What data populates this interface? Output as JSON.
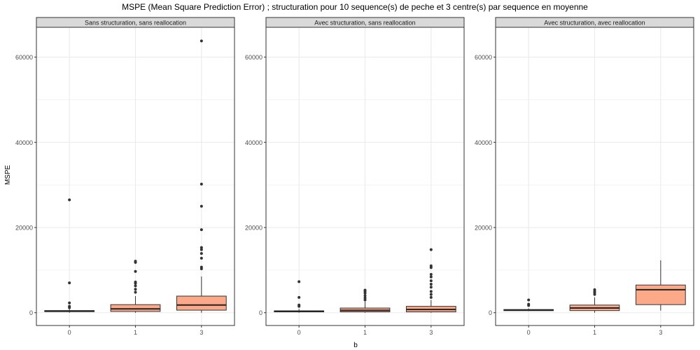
{
  "chart_data": {
    "type": "boxplot",
    "title": "MSPE (Mean Square Prediction Error) ; structuration pour 10 sequence(s) de peche et 3 centre(s) par sequence en moyenne",
    "xlabel": "b",
    "ylabel": "MSPE",
    "categories": [
      "0",
      "1",
      "3"
    ],
    "ylim": [
      -3000,
      67000
    ],
    "yticks": [
      0,
      20000,
      40000,
      60000
    ],
    "ytick_labels": [
      "0",
      "20000",
      "40000",
      "60000"
    ],
    "grid": true,
    "colors": {
      "fill": "#FCA98A",
      "facet_strip": "#D9D9D9",
      "panel_border": "#333333",
      "grid": "#EBEBEB"
    },
    "panels": [
      {
        "strip_label": "Sans structuration, sans reallocation",
        "boxes": [
          {
            "category": "0",
            "lower_whisker": 0,
            "q1": 250,
            "median": 380,
            "q3": 500,
            "upper_whisker": 900,
            "outliers": [
              1200,
              1500,
              2300,
              7000,
              26500
            ]
          },
          {
            "category": "1",
            "lower_whisker": 0,
            "q1": 300,
            "median": 900,
            "q3": 1900,
            "upper_whisker": 3900,
            "outliers": [
              4800,
              5500,
              6300,
              6900,
              7200,
              9700,
              11800,
              12100
            ]
          },
          {
            "category": "3",
            "lower_whisker": 0,
            "q1": 600,
            "median": 1800,
            "q3": 3900,
            "upper_whisker": 8500,
            "outliers": [
              10300,
              10700,
              12800,
              13900,
              14800,
              15300,
              19500,
              25000,
              30200,
              63800
            ]
          }
        ]
      },
      {
        "strip_label": "Avec structuration, sans reallocation",
        "boxes": [
          {
            "category": "0",
            "lower_whisker": 0,
            "q1": 200,
            "median": 330,
            "q3": 450,
            "upper_whisker": 900,
            "outliers": [
              1500,
              1800,
              3600,
              7300
            ]
          },
          {
            "category": "1",
            "lower_whisker": 0,
            "q1": 200,
            "median": 550,
            "q3": 1100,
            "upper_whisker": 2600,
            "outliers": [
              3000,
              3500,
              4000,
              4600,
              5000,
              5300
            ]
          },
          {
            "category": "3",
            "lower_whisker": 0,
            "q1": 200,
            "median": 750,
            "q3": 1500,
            "upper_whisker": 3000,
            "outliers": [
              3600,
              4300,
              5000,
              6000,
              6700,
              7500,
              8400,
              9000,
              10600,
              11000,
              14800
            ]
          }
        ]
      },
      {
        "strip_label": "Avec structuration, avec reallocation",
        "boxes": [
          {
            "category": "0",
            "lower_whisker": 400,
            "q1": 500,
            "median": 600,
            "q3": 750,
            "upper_whisker": 1000,
            "outliers": [
              1700,
              2000,
              3000
            ]
          },
          {
            "category": "1",
            "lower_whisker": 0,
            "q1": 500,
            "median": 1100,
            "q3": 1800,
            "upper_whisker": 3600,
            "outliers": [
              4300,
              4700,
              5000,
              5400
            ]
          },
          {
            "category": "3",
            "lower_whisker": 500,
            "q1": 1900,
            "median": 5400,
            "q3": 6500,
            "upper_whisker": 12300,
            "outliers": []
          }
        ]
      }
    ]
  }
}
